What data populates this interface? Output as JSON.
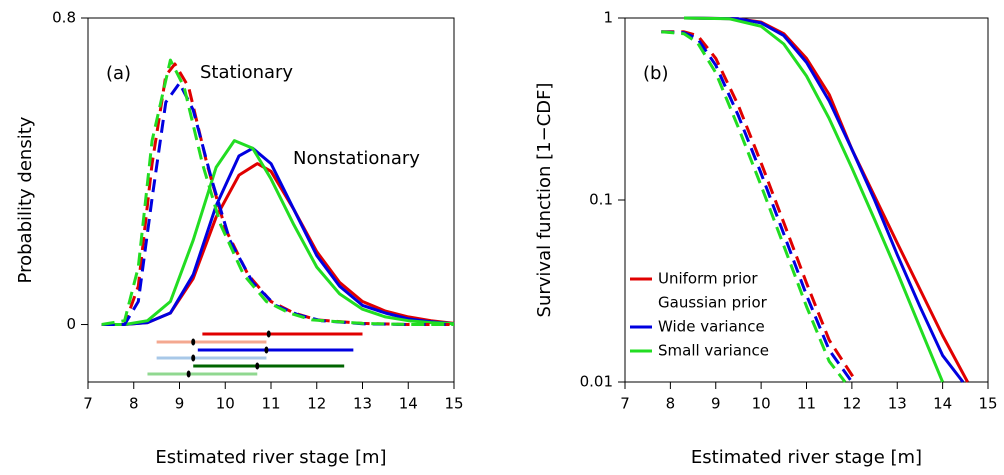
{
  "chart_data": [
    {
      "type": "line",
      "panel_label": "(a)",
      "x_label": "Estimated river stage [m]",
      "y_label": "Probability density",
      "xlim": [
        7,
        15
      ],
      "ylim": [
        -0.15,
        0.8
      ],
      "xticks": [
        7,
        8,
        9,
        10,
        11,
        12,
        13,
        14,
        15
      ],
      "yticks": [
        0,
        0.8
      ],
      "log": false,
      "annotations": [
        "Stationary",
        "Nonstationary"
      ],
      "series": [
        {
          "color": "#e00000",
          "dashed": false,
          "x": [
            7.3,
            7.8,
            8.3,
            8.8,
            9.3,
            9.8,
            10.3,
            10.7,
            11.0,
            11.5,
            12.0,
            12.5,
            13.0,
            13.5,
            14.0,
            14.5,
            15
          ],
          "values": [
            0,
            0,
            0.005,
            0.03,
            0.12,
            0.28,
            0.39,
            0.42,
            0.4,
            0.3,
            0.19,
            0.11,
            0.06,
            0.035,
            0.02,
            0.01,
            0.003
          ]
        },
        {
          "color": "#0000e0",
          "dashed": false,
          "x": [
            7.3,
            7.8,
            8.3,
            8.8,
            9.3,
            9.8,
            10.3,
            10.6,
            11.0,
            11.5,
            12.0,
            12.5,
            13.0,
            13.5,
            14.0,
            14.5,
            15
          ],
          "values": [
            0,
            0,
            0.005,
            0.03,
            0.13,
            0.31,
            0.44,
            0.46,
            0.42,
            0.3,
            0.18,
            0.1,
            0.05,
            0.03,
            0.015,
            0.007,
            0.002
          ]
        },
        {
          "color": "#22dd22",
          "dashed": false,
          "x": [
            7.3,
            7.8,
            8.3,
            8.8,
            9.3,
            9.8,
            10.2,
            10.6,
            11.0,
            11.5,
            12.0,
            12.5,
            13.0,
            13.5,
            14.0,
            14.5,
            15
          ],
          "values": [
            0,
            0,
            0.01,
            0.06,
            0.22,
            0.41,
            0.48,
            0.46,
            0.38,
            0.26,
            0.15,
            0.08,
            0.04,
            0.02,
            0.01,
            0.005,
            0.002
          ]
        },
        {
          "color": "#e00000",
          "dashed": true,
          "x": [
            7.3,
            7.8,
            8.1,
            8.4,
            8.7,
            8.9,
            9.2,
            9.6,
            10.0,
            10.5,
            11.0,
            11.5,
            12.0,
            13,
            14,
            15
          ],
          "values": [
            0,
            0,
            0.1,
            0.42,
            0.65,
            0.68,
            0.62,
            0.42,
            0.25,
            0.13,
            0.06,
            0.03,
            0.012,
            0.003,
            0,
            0
          ]
        },
        {
          "color": "#0000e0",
          "dashed": true,
          "x": [
            7.3,
            7.8,
            8.1,
            8.4,
            8.7,
            9.0,
            9.3,
            9.7,
            10.1,
            10.6,
            11.1,
            11.6,
            12.1,
            13,
            14,
            15
          ],
          "values": [
            0,
            0,
            0.06,
            0.33,
            0.58,
            0.63,
            0.56,
            0.38,
            0.22,
            0.11,
            0.05,
            0.025,
            0.01,
            0.002,
            0,
            0
          ]
        },
        {
          "color": "#22dd22",
          "dashed": true,
          "x": [
            7.3,
            7.8,
            8.1,
            8.4,
            8.8,
            9.1,
            9.5,
            9.9,
            10.4,
            10.9,
            11.4,
            11.9,
            13,
            14,
            15
          ],
          "values": [
            0,
            0.01,
            0.15,
            0.48,
            0.69,
            0.62,
            0.42,
            0.26,
            0.13,
            0.06,
            0.03,
            0.012,
            0.003,
            0,
            0
          ]
        }
      ],
      "intervals": [
        {
          "color": "#e00000",
          "lower": 9.5,
          "upper": 13.0,
          "median": 10.95
        },
        {
          "color": "#f4a890",
          "lower": 8.5,
          "upper": 10.9,
          "median": 9.3
        },
        {
          "color": "#0000e0",
          "lower": 9.4,
          "upper": 12.8,
          "median": 10.9
        },
        {
          "color": "#a8c8e8",
          "lower": 8.5,
          "upper": 10.9,
          "median": 9.3
        },
        {
          "color": "#006400",
          "lower": 9.3,
          "upper": 12.6,
          "median": 10.7
        },
        {
          "color": "#90d890",
          "lower": 8.3,
          "upper": 10.7,
          "median": 9.2
        }
      ]
    },
    {
      "type": "line",
      "panel_label": "(b)",
      "x_label": "Estimated river stage [m]",
      "y_label": "Survival function [1−CDF]",
      "xlim": [
        7,
        15
      ],
      "ylim": [
        0.01,
        1
      ],
      "xticks": [
        7,
        8,
        9,
        10,
        11,
        12,
        13,
        14,
        15
      ],
      "yticks": [
        0.01,
        0.1,
        1
      ],
      "log": true,
      "legend": "bottom-left",
      "legend_subtitle": "Gaussian prior",
      "series": [
        {
          "name": "Uniform prior",
          "color": "#e00000",
          "dashed": false,
          "x": [
            8.3,
            9.5,
            10,
            10.5,
            11,
            11.5,
            12,
            13,
            14,
            14.55
          ],
          "values": [
            1,
            0.99,
            0.95,
            0.82,
            0.6,
            0.38,
            0.19,
            0.058,
            0.018,
            0.01
          ]
        },
        {
          "name": "Wide variance",
          "color": "#0000e0",
          "dashed": false,
          "x": [
            8.3,
            9.5,
            10,
            10.5,
            11,
            11.5,
            12,
            12.5,
            13,
            13.5,
            14,
            14.45
          ],
          "values": [
            1,
            0.99,
            0.94,
            0.8,
            0.57,
            0.35,
            0.19,
            0.1,
            0.05,
            0.026,
            0.014,
            0.01
          ]
        },
        {
          "name": "Small variance",
          "color": "#22dd22",
          "dashed": false,
          "x": [
            8.3,
            9.3,
            10,
            10.5,
            11,
            11.5,
            12,
            12.5,
            13,
            13.5,
            14
          ],
          "values": [
            1,
            0.99,
            0.9,
            0.72,
            0.48,
            0.28,
            0.15,
            0.078,
            0.04,
            0.02,
            0.01
          ]
        },
        {
          "color": "#e00000",
          "dashed": true,
          "x": [
            7.8,
            8.3,
            8.6,
            9,
            9.5,
            10,
            10.5,
            11,
            11.5,
            12.1
          ],
          "values": [
            0.84,
            0.84,
            0.8,
            0.6,
            0.33,
            0.16,
            0.075,
            0.035,
            0.017,
            0.01
          ]
        },
        {
          "color": "#0000e0",
          "dashed": true,
          "x": [
            7.8,
            8.3,
            8.6,
            9,
            9.5,
            10,
            10.5,
            11,
            11.5,
            12.0
          ],
          "values": [
            0.84,
            0.83,
            0.77,
            0.55,
            0.29,
            0.14,
            0.065,
            0.03,
            0.015,
            0.01
          ]
        },
        {
          "color": "#22dd22",
          "dashed": true,
          "x": [
            7.8,
            8.3,
            8.6,
            9,
            9.5,
            10,
            10.5,
            11,
            11.5,
            11.85
          ],
          "values": [
            0.84,
            0.82,
            0.73,
            0.5,
            0.25,
            0.12,
            0.056,
            0.026,
            0.013,
            0.01
          ]
        }
      ]
    }
  ]
}
